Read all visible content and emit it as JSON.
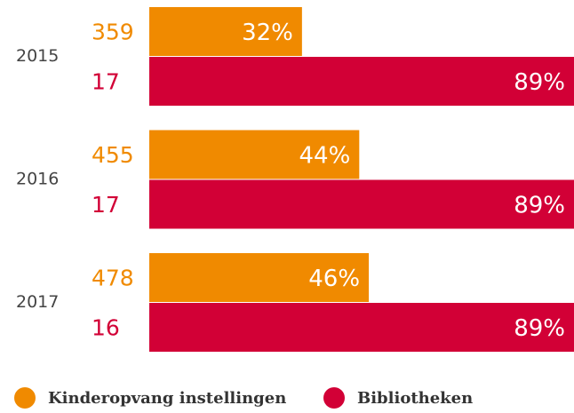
{
  "chart_data": {
    "type": "bar",
    "categories": [
      "2015",
      "2016",
      "2017"
    ],
    "series": [
      {
        "name": "Kinderopvang instellingen",
        "color": "#f08a00",
        "values": [
          32,
          44,
          46
        ],
        "value_labels": [
          "32%",
          "44%",
          "46%"
        ],
        "counts": [
          359,
          455,
          478
        ]
      },
      {
        "name": "Bibliotheken",
        "color": "#d20036",
        "values": [
          89,
          89,
          89
        ],
        "value_labels": [
          "89%",
          "89%",
          "89%"
        ],
        "counts": [
          17,
          17,
          16
        ]
      }
    ],
    "legend": "bottom-left"
  }
}
